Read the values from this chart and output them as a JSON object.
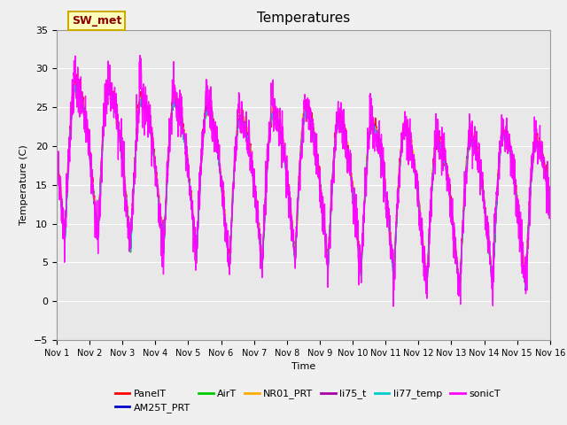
{
  "title": "Temperatures",
  "xlabel": "Time",
  "ylabel": "Temperature (C)",
  "ylim": [
    -5,
    35
  ],
  "xlim": [
    0,
    15
  ],
  "x_tick_labels": [
    "Nov 1",
    "Nov 2",
    "Nov 3",
    "Nov 4",
    "Nov 5",
    "Nov 6",
    "Nov 7",
    "Nov 8",
    "Nov 9",
    "Nov 10",
    "Nov 11",
    "Nov 12",
    "Nov 13",
    "Nov 14",
    "Nov 15",
    "Nov 16"
  ],
  "series_order": [
    "PanelT",
    "AM25T_PRT",
    "AirT",
    "NR01_PRT",
    "li75_t",
    "li77_temp",
    "sonicT"
  ],
  "series": {
    "PanelT": {
      "color": "#ff0000",
      "lw": 1.0
    },
    "AM25T_PRT": {
      "color": "#0000cc",
      "lw": 1.0
    },
    "AirT": {
      "color": "#00cc00",
      "lw": 1.0
    },
    "NR01_PRT": {
      "color": "#ffaa00",
      "lw": 1.0
    },
    "li75_t": {
      "color": "#aa00aa",
      "lw": 1.0
    },
    "li77_temp": {
      "color": "#00cccc",
      "lw": 1.0
    },
    "sonicT": {
      "color": "#ff00ff",
      "lw": 1.0
    }
  },
  "annotation_text": "SW_met",
  "annotation_color": "#8b0000",
  "annotation_bbox_fc": "#ffffbb",
  "annotation_bbox_ec": "#ccaa00",
  "bg_color": "#e8e8e8",
  "fig_bg_color": "#f0f0f0",
  "grid_color": "#ffffff",
  "title_fontsize": 11,
  "tick_fontsize": 8,
  "legend_fontsize": 8
}
